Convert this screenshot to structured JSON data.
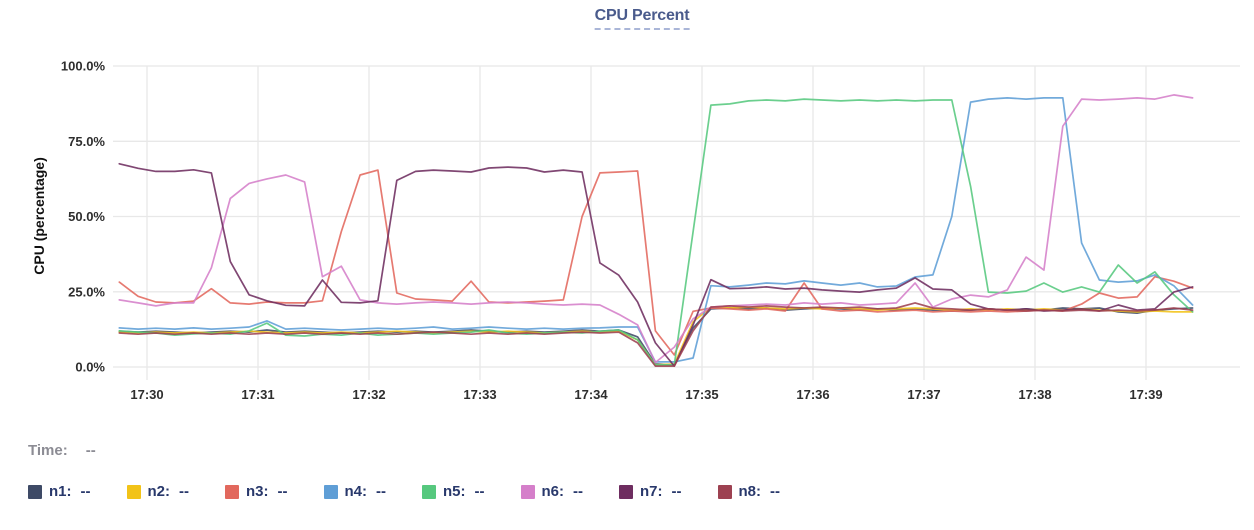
{
  "header": {
    "title": "CPU Percent"
  },
  "status": {
    "time_label": "Time:",
    "time_value": "--"
  },
  "colors": {
    "background": "#ffffff",
    "grid": "#e8e8e8",
    "title_text": "#4a5b8c",
    "title_underline": "#aab6d8",
    "tick_text": "#2e2e2e",
    "time_text": "#8c8c94",
    "legend_text": "#28386b"
  },
  "chart_data": {
    "type": "line",
    "title": "CPU Percent",
    "xlabel": "",
    "ylabel": "CPU (percentage)",
    "ylim": [
      0,
      100
    ],
    "grid": true,
    "legend_position": "bottom",
    "y_ticks": [
      {
        "value": 100,
        "label": "100.0%"
      },
      {
        "value": 75,
        "label": "75.0%"
      },
      {
        "value": 50,
        "label": "50.0%"
      },
      {
        "value": 25,
        "label": "25.0%"
      },
      {
        "value": 0,
        "label": "0.0%"
      }
    ],
    "x_ticks": [
      {
        "minute": 30,
        "label": "17:30"
      },
      {
        "minute": 31,
        "label": "17:31"
      },
      {
        "minute": 32,
        "label": "17:32"
      },
      {
        "minute": 33,
        "label": "17:33"
      },
      {
        "minute": 34,
        "label": "17:34"
      },
      {
        "minute": 35,
        "label": "17:35"
      },
      {
        "minute": 36,
        "label": "17:36"
      },
      {
        "minute": 37,
        "label": "17:37"
      },
      {
        "minute": 38,
        "label": "17:38"
      },
      {
        "minute": 39,
        "label": "17:39"
      }
    ],
    "x_range_minutes": [
      29.75,
      39.42
    ],
    "x_minutes": [
      29.75,
      29.92,
      30.08,
      30.25,
      30.42,
      30.58,
      30.75,
      30.92,
      31.08,
      31.25,
      31.42,
      31.58,
      31.75,
      31.92,
      32.08,
      32.25,
      32.42,
      32.58,
      32.75,
      32.92,
      33.08,
      33.25,
      33.42,
      33.58,
      33.75,
      33.92,
      34.08,
      34.25,
      34.42,
      34.58,
      34.75,
      34.92,
      35.08,
      35.25,
      35.42,
      35.58,
      35.75,
      35.92,
      36.08,
      36.25,
      36.42,
      36.58,
      36.75,
      36.92,
      37.08,
      37.25,
      37.42,
      37.58,
      37.75,
      37.92,
      38.08,
      38.25,
      38.42,
      38.58,
      38.75,
      38.92,
      39.08,
      39.25,
      39.42
    ],
    "series": [
      {
        "name": "n1",
        "color": "#3e4a66",
        "values": [
          11.9,
          11.6,
          11.9,
          11.6,
          11.3,
          11.6,
          11.9,
          11.6,
          12.3,
          11.6,
          11.9,
          11.6,
          11.3,
          11.6,
          11.9,
          11.6,
          11.9,
          11.6,
          11.9,
          12.3,
          11.9,
          11.6,
          11.9,
          11.6,
          11.9,
          12.3,
          11.9,
          12.3,
          10,
          1,
          0.7,
          13,
          19.3,
          19.6,
          19.3,
          19.6,
          18.9,
          19.3,
          19.6,
          19.3,
          18.9,
          19.3,
          18.9,
          19.3,
          18.9,
          18.6,
          18.9,
          19.3,
          18.9,
          19.3,
          18.9,
          19.6,
          19.3,
          19.6,
          18.3,
          17.9,
          18.9,
          19.3,
          19.6
        ]
      },
      {
        "name": "n2",
        "color": "#f2c318",
        "values": [
          11.6,
          11.3,
          11.6,
          11.3,
          11.6,
          11.3,
          11.6,
          11.9,
          11.6,
          11.3,
          11.6,
          11.3,
          11.6,
          11.3,
          11.6,
          11.9,
          11.6,
          11.3,
          11.6,
          11.9,
          11.6,
          11.9,
          11.6,
          11.3,
          11.6,
          11.9,
          11.6,
          11.9,
          9,
          0.7,
          1,
          15,
          19.9,
          19.6,
          19.9,
          19.6,
          19.3,
          19.6,
          19.3,
          19.6,
          19.3,
          18.9,
          19.3,
          19.6,
          19.3,
          18.9,
          19.3,
          18.9,
          19.3,
          18.9,
          19.3,
          18.9,
          19.3,
          18.9,
          18.6,
          18.3,
          18.6,
          18.3,
          18.3
        ]
      },
      {
        "name": "n3",
        "color": "#e2685d",
        "values": [
          28.2,
          23.5,
          21.6,
          21.3,
          21.9,
          26,
          21.3,
          20.9,
          21.6,
          21.3,
          21.3,
          22,
          45,
          63.8,
          65.4,
          24.6,
          22.6,
          22.3,
          21.9,
          28.5,
          21.6,
          21.3,
          21.6,
          21.9,
          22.3,
          50,
          64.5,
          64.8,
          65.1,
          12,
          4,
          18.5,
          19.6,
          19.3,
          18.9,
          19.3,
          18.6,
          27.9,
          19.3,
          18.6,
          18.9,
          18.3,
          18.6,
          18.9,
          18.3,
          18.6,
          18.3,
          18.6,
          18.3,
          18.6,
          18.9,
          18.6,
          20.9,
          24.6,
          22.9,
          23.3,
          30,
          28.5,
          26.2
        ]
      },
      {
        "name": "n4",
        "color": "#5f9ed6",
        "values": [
          13,
          12.6,
          12.9,
          12.6,
          13,
          12.6,
          12.9,
          13.3,
          15.3,
          12.6,
          12.9,
          12.6,
          12.3,
          12.6,
          12.9,
          12.6,
          12.9,
          13.3,
          12.6,
          12.9,
          13.3,
          12.9,
          12.6,
          12.9,
          12.6,
          12.9,
          13,
          13.3,
          13.3,
          1.7,
          1.7,
          3,
          27,
          26.6,
          27.2,
          27.9,
          27.6,
          28.6,
          27.9,
          27.2,
          27.9,
          26.6,
          26.9,
          29.9,
          30.6,
          50,
          88,
          89,
          89.4,
          89,
          89.4,
          89.4,
          41.2,
          28.9,
          28.2,
          28.6,
          30.6,
          27,
          20.6
        ]
      },
      {
        "name": "n5",
        "color": "#56c87e",
        "values": [
          12,
          11.6,
          11.3,
          10.6,
          11,
          11.3,
          10.9,
          12,
          14.6,
          10.6,
          10.3,
          10.9,
          10.6,
          11.3,
          10.6,
          10.9,
          11.3,
          10.9,
          11.3,
          11.6,
          12.3,
          11.3,
          10.9,
          11.3,
          11.6,
          11.3,
          11.9,
          12.3,
          9,
          0.7,
          0.7,
          45,
          87,
          87.4,
          88.4,
          88.7,
          88.4,
          89,
          88.7,
          88.4,
          88.7,
          88.4,
          88.7,
          88.4,
          88.7,
          88.7,
          60,
          24.9,
          24.6,
          25.2,
          27.9,
          24.9,
          26.6,
          24.9,
          33.9,
          27.9,
          31.6,
          24,
          18.3
        ]
      },
      {
        "name": "n6",
        "color": "#d57fca",
        "values": [
          22.3,
          21.3,
          20.3,
          21.3,
          21.3,
          33,
          56,
          61,
          62.5,
          63.8,
          61.5,
          30,
          33.5,
          22.3,
          21.3,
          20.9,
          21.3,
          21.6,
          21.3,
          20.9,
          21.3,
          21.6,
          21.3,
          20.9,
          20.6,
          20.9,
          20.6,
          17.5,
          14,
          1.5,
          6.6,
          16,
          19.9,
          20.3,
          20.6,
          20.9,
          20.6,
          21.3,
          20.9,
          21.3,
          20.6,
          20.9,
          21.3,
          27.9,
          19.9,
          22.6,
          23.9,
          23.3,
          25.6,
          36.5,
          32.2,
          80,
          89,
          88.7,
          89,
          89.4,
          89,
          90.4,
          89.4
        ]
      },
      {
        "name": "n7",
        "color": "#6e2d60",
        "values": [
          67.5,
          66,
          65,
          65,
          65.5,
          64.5,
          35,
          24,
          22,
          20.5,
          20.3,
          28.9,
          21.5,
          21.3,
          22,
          62,
          65,
          65.4,
          65.1,
          64.8,
          66.1,
          66.4,
          66.1,
          64.8,
          65.4,
          64.8,
          34.6,
          30.5,
          21.6,
          8,
          0.3,
          14,
          29,
          26,
          26.2,
          26.6,
          25.9,
          26.2,
          25.6,
          25.2,
          24.9,
          25.6,
          26.2,
          29.6,
          25.9,
          25.6,
          20.9,
          19.3,
          18.9,
          19.3,
          18.6,
          18.9,
          19.3,
          18.6,
          20.6,
          18.9,
          19.3,
          24.9,
          26.6
        ]
      },
      {
        "name": "n8",
        "color": "#9d4151",
        "values": [
          11.3,
          10.9,
          11.3,
          10.9,
          11.3,
          10.9,
          11.3,
          10.9,
          11.3,
          10.9,
          11.3,
          10.9,
          11.3,
          10.9,
          11.3,
          10.9,
          11.3,
          11.6,
          11.3,
          10.9,
          11.3,
          10.9,
          11.3,
          10.9,
          11.3,
          11.6,
          11.3,
          11.6,
          8,
          0.3,
          0.3,
          12,
          19.9,
          20.3,
          19.9,
          20.3,
          19.9,
          19.6,
          19.9,
          19.6,
          19.9,
          19.3,
          19.6,
          21.3,
          19.6,
          19.3,
          18.9,
          19.3,
          18.9,
          18.6,
          18.9,
          18.6,
          18.9,
          18.6,
          18.9,
          18.6,
          18.9,
          19.6,
          18.9
        ]
      }
    ]
  },
  "legend": {
    "items": [
      {
        "name": "n1",
        "label": "n1:",
        "value": "--",
        "color": "#3e4a66"
      },
      {
        "name": "n2",
        "label": "n2:",
        "value": "--",
        "color": "#f2c318"
      },
      {
        "name": "n3",
        "label": "n3:",
        "value": "--",
        "color": "#e2685d"
      },
      {
        "name": "n4",
        "label": "n4:",
        "value": "--",
        "color": "#5f9ed6"
      },
      {
        "name": "n5",
        "label": "n5:",
        "value": "--",
        "color": "#56c87e"
      },
      {
        "name": "n6",
        "label": "n6:",
        "value": "--",
        "color": "#d57fca"
      },
      {
        "name": "n7",
        "label": "n7:",
        "value": "--",
        "color": "#6e2d60"
      },
      {
        "name": "n8",
        "label": "n8:",
        "value": "--",
        "color": "#9d4151"
      }
    ]
  }
}
